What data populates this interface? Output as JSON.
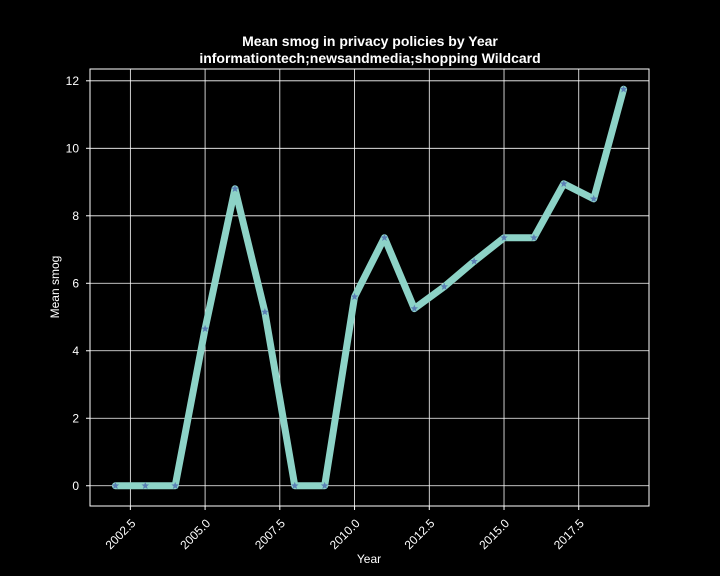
{
  "chart_data": {
    "type": "line",
    "title_line1": "Mean smog in privacy policies by Year",
    "title_line2": "informationtech;newsandmedia;shopping Wildcard",
    "xlabel": "Year",
    "ylabel": "Mean smog",
    "xlim": [
      2001.15,
      2019.85
    ],
    "ylim": [
      -0.6,
      12.35
    ],
    "xticks": [
      2002.5,
      2005.0,
      2007.5,
      2010.0,
      2012.5,
      2015.0,
      2017.5
    ],
    "xtick_labels": [
      "2002.5",
      "2005.0",
      "2007.5",
      "2010.0",
      "2012.5",
      "2015.0",
      "2017.5"
    ],
    "yticks": [
      0,
      2,
      4,
      6,
      8,
      10,
      12
    ],
    "ytick_labels": [
      "0",
      "2",
      "4",
      "6",
      "8",
      "10",
      "12"
    ],
    "grid": true,
    "series": [
      {
        "x": [
          2002,
          2003,
          2004,
          2005,
          2006,
          2007,
          2008,
          2009,
          2010,
          2011,
          2012,
          2013,
          2014,
          2015,
          2016,
          2017,
          2018,
          2019
        ],
        "values": [
          0,
          0,
          0,
          4.65,
          8.8,
          5.15,
          0,
          0,
          5.6,
          7.35,
          5.25,
          5.9,
          6.65,
          7.35,
          7.35,
          8.95,
          8.5,
          11.75
        ],
        "line_color": "#8dd3c7",
        "marker_color": "#5b7fb5",
        "marker": "star"
      }
    ]
  }
}
